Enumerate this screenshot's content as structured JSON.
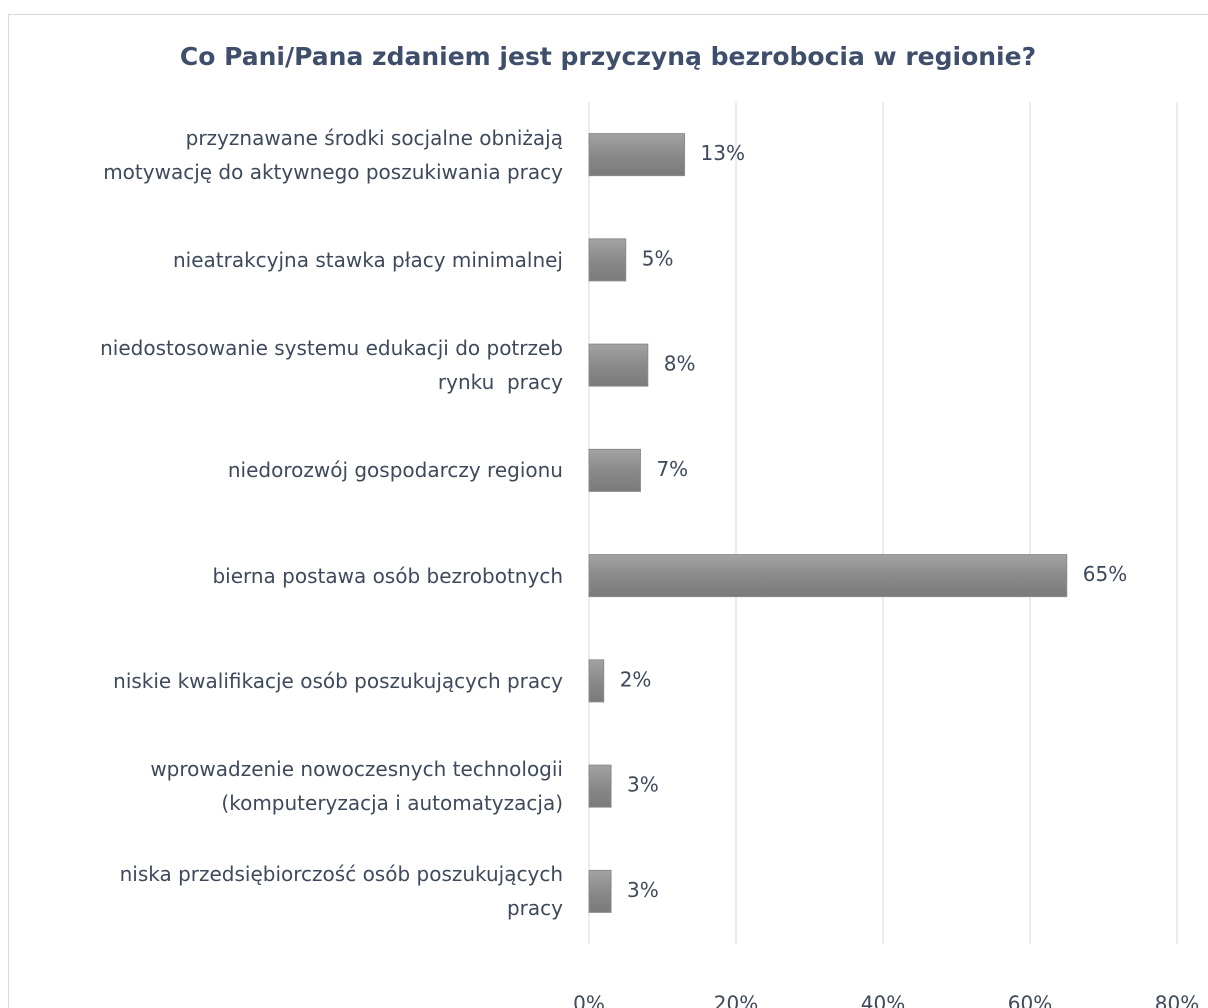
{
  "chart_data": {
    "type": "bar",
    "orientation": "horizontal",
    "title": "Co Pani/Pana zdaniem jest przyczyną bezrobocia w regionie?",
    "categories": [
      "przyznawane środki socjalne obniżają\nmotywację do aktywnego poszukiwania pracy",
      "nieatrakcyjna stawka płacy minimalnej",
      "niedostosowanie systemu edukacji do potrzeb\nrynku  pracy",
      "niedorozwój gospodarczy regionu",
      "bierna postawa osób bezrobotnych",
      "niskie kwalifikacje osób poszukujących pracy",
      "wprowadzenie nowoczesnych technologii\n(komputeryzacja i automatyzacja)",
      "niska przedsiębiorczość osób poszukujących\npracy"
    ],
    "values": [
      13,
      5,
      8,
      7,
      65,
      2,
      3,
      3
    ],
    "value_labels": [
      "13%",
      "5%",
      "8%",
      "7%",
      "65%",
      "2%",
      "3%",
      "3%"
    ],
    "color": "#8a8a8a",
    "xlim": [
      0,
      80
    ],
    "xticks": [
      {
        "value": 0,
        "label": "0%"
      },
      {
        "value": 20,
        "label": "20%"
      },
      {
        "value": 40,
        "label": "40%"
      },
      {
        "value": 60,
        "label": "60%"
      },
      {
        "value": 80,
        "label": "80%"
      }
    ],
    "grid": true
  }
}
